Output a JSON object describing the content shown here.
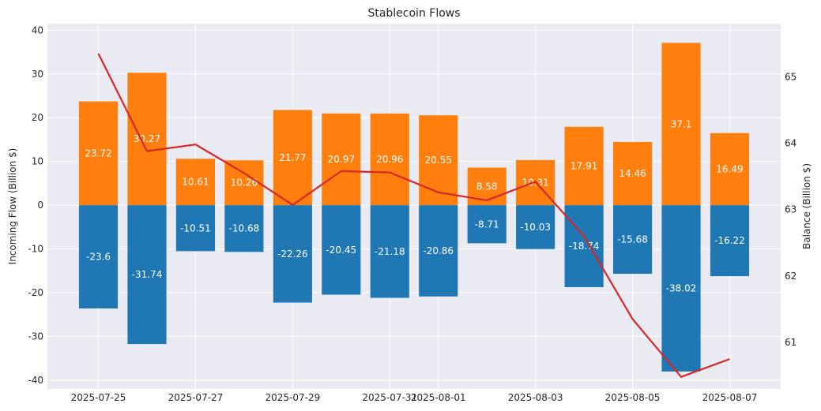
{
  "chart_data": {
    "type": "bar",
    "title": "Stablecoin Flows",
    "ylabel": "Incoming Flow (Billion $)",
    "y2label": "Balance (Billion $)",
    "ylim": [
      -42,
      41.5
    ],
    "y2lim": [
      60.3,
      65.8
    ],
    "yticks": [
      40,
      30,
      20,
      10,
      0,
      -10,
      -20,
      -30,
      -40
    ],
    "y2ticks": [
      65,
      64,
      63,
      62,
      61
    ],
    "grid": true,
    "dates": [
      "2025-07-25",
      "2025-07-26",
      "2025-07-27",
      "2025-07-28",
      "2025-07-29",
      "2025-07-30",
      "2025-07-31",
      "2025-08-01",
      "2025-08-02",
      "2025-08-03",
      "2025-08-04",
      "2025-08-05",
      "2025-08-06",
      "2025-08-07"
    ],
    "xtick_labels": [
      "2025-07-25",
      "2025-07-27",
      "2025-07-29",
      "2025-07-31",
      "2025-08-01",
      "2025-08-03",
      "2025-08-05",
      "2025-08-07"
    ],
    "xtick_dates": [
      "2025-07-25",
      "2025-07-27",
      "2025-07-29",
      "2025-07-31",
      "2025-08-01",
      "2025-08-03",
      "2025-08-05",
      "2025-08-07"
    ],
    "series": [
      {
        "values": [
          23.72,
          30.27,
          10.61,
          10.26,
          21.77,
          20.97,
          20.96,
          20.55,
          8.58,
          10.31,
          17.91,
          14.46,
          37.1,
          16.49
        ],
        "color": "#ff7f0e",
        "labels": [
          "23.72",
          "30.27",
          "10.61",
          "10.26",
          "21.77",
          "20.97",
          "20.96",
          "20.55",
          "8.58",
          "10.31",
          "17.91",
          "14.46",
          "37.1",
          "16.49"
        ]
      },
      {
        "values": [
          -23.6,
          -31.74,
          -10.51,
          -10.68,
          -22.26,
          -20.45,
          -21.18,
          -20.86,
          -8.71,
          -10.03,
          -18.74,
          -15.68,
          -38.02,
          -16.22
        ],
        "color": "#1f77b4",
        "labels": [
          "-23.6",
          "-31.74",
          "-10.51",
          "-10.68",
          "-22.26",
          "-20.45",
          "-21.18",
          "-20.86",
          "-8.71",
          "-10.03",
          "-18.74",
          "-15.68",
          "-38.02",
          "-16.22"
        ]
      },
      {
        "type": "line",
        "axis": "right",
        "color": "#d62728",
        "values": [
          65.35,
          63.88,
          63.98,
          63.55,
          63.07,
          63.58,
          63.56,
          63.26,
          63.14,
          63.42,
          62.6,
          61.35,
          60.48,
          60.75
        ]
      }
    ]
  }
}
